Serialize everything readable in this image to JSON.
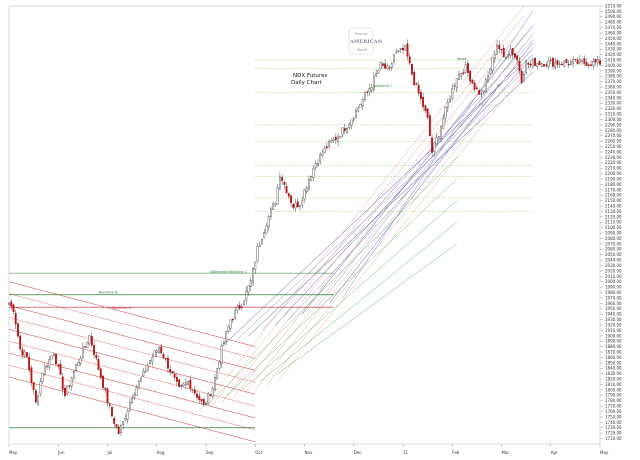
{
  "chart_data": {
    "type": "candlestick",
    "title": "NDX  Futures",
    "subtitle": "Daily Chart",
    "xlabel": "",
    "ylabel": "",
    "ylim": [
      1700,
      2510
    ],
    "y_ticks": [
      1710,
      1720,
      1730,
      1740,
      1750,
      1760,
      1770,
      1780,
      1790,
      1800,
      1810,
      1820,
      1830,
      1840,
      1850,
      1860,
      1870,
      1880,
      1890,
      1900,
      1910,
      1920,
      1930,
      1940,
      1950,
      1960,
      1970,
      1980,
      1990,
      2000,
      2010,
      2020,
      2030,
      2040,
      2050,
      2060,
      2070,
      2080,
      2090,
      2100,
      2110,
      2120,
      2130,
      2140,
      2150,
      2160,
      2170,
      2180,
      2190,
      2200,
      2210,
      2220,
      2230,
      2240,
      2250,
      2260,
      2270,
      2280,
      2290,
      2300,
      2310,
      2320,
      2330,
      2340,
      2350,
      2360,
      2370,
      2380,
      2390,
      2400,
      2410,
      2420,
      2430,
      2440,
      2450,
      2460,
      2470,
      2480,
      2490,
      2500,
      2510
    ],
    "months": [
      "May",
      "Jun",
      "Jul",
      "Aug",
      "Sep",
      "Oct",
      "Nov",
      "Dec",
      "11",
      "Feb",
      "Mar",
      "Apr",
      "May"
    ],
    "month_days": [
      0,
      22,
      44,
      66,
      88,
      110,
      132,
      154,
      176,
      198,
      220,
      242,
      264
    ],
    "total_days": 265,
    "anchors": [
      [
        0,
        1960
      ],
      [
        2,
        1950
      ],
      [
        5,
        1875
      ],
      [
        8,
        1860
      ],
      [
        12,
        1775
      ],
      [
        15,
        1835
      ],
      [
        20,
        1870
      ],
      [
        25,
        1790
      ],
      [
        30,
        1845
      ],
      [
        36,
        1900
      ],
      [
        40,
        1840
      ],
      [
        44,
        1780
      ],
      [
        46,
        1752
      ],
      [
        49,
        1720
      ],
      [
        51,
        1740
      ],
      [
        55,
        1790
      ],
      [
        59,
        1820
      ],
      [
        63,
        1855
      ],
      [
        67,
        1880
      ],
      [
        71,
        1845
      ],
      [
        76,
        1800
      ],
      [
        80,
        1815
      ],
      [
        84,
        1790
      ],
      [
        87,
        1770
      ],
      [
        91,
        1805
      ],
      [
        95,
        1875
      ],
      [
        99,
        1930
      ],
      [
        104,
        1960
      ],
      [
        108,
        2000
      ],
      [
        111,
        2060
      ],
      [
        115,
        2110
      ],
      [
        119,
        2150
      ],
      [
        121,
        2200
      ],
      [
        123,
        2180
      ],
      [
        125,
        2160
      ],
      [
        127,
        2140
      ],
      [
        130,
        2145
      ],
      [
        133,
        2180
      ],
      [
        137,
        2220
      ],
      [
        142,
        2250
      ],
      [
        147,
        2270
      ],
      [
        152,
        2295
      ],
      [
        157,
        2330
      ],
      [
        162,
        2365
      ],
      [
        166,
        2400
      ],
      [
        170,
        2390
      ],
      [
        172,
        2420
      ],
      [
        177,
        2430
      ],
      [
        181,
        2370
      ],
      [
        185,
        2325
      ],
      [
        187,
        2300
      ],
      [
        189,
        2240
      ],
      [
        192,
        2275
      ],
      [
        196,
        2330
      ],
      [
        200,
        2380
      ],
      [
        204,
        2395
      ],
      [
        208,
        2360
      ],
      [
        211,
        2345
      ],
      [
        214,
        2380
      ],
      [
        218,
        2440
      ],
      [
        221,
        2415
      ],
      [
        224,
        2430
      ],
      [
        227,
        2410
      ],
      [
        229,
        2375
      ],
      [
        231,
        2405
      ],
      [
        233,
        2400
      ],
      [
        234,
        2405
      ]
    ],
    "ohlc_seed": 7,
    "annotations": [
      {
        "text": "neckline C",
        "color": "#2e7d32",
        "x": 163,
        "y": 2360
      },
      {
        "text": "Neckline  A",
        "color": "#c62828",
        "x": 46,
        "y": 1950
      },
      {
        "text": "Neckline  B",
        "color": "#2e7d32",
        "x": 40,
        "y": 1978
      },
      {
        "text": "Alternate Neckline  C",
        "color": "#2e7d32",
        "x": 90,
        "y": 2016
      },
      {
        "text": "Head",
        "color": "#2e7d32",
        "x": 200,
        "y": 2410
      },
      {
        "text": "P",
        "color": "#2e7d32",
        "x": 218,
        "y": 2360
      },
      {
        "text": "P2",
        "color": "#2e7d32",
        "x": 210,
        "y": 2325
      }
    ]
  },
  "logo": {
    "line1": "Rescue",
    "line2": "AMERICAN",
    "line3": "Stock"
  }
}
